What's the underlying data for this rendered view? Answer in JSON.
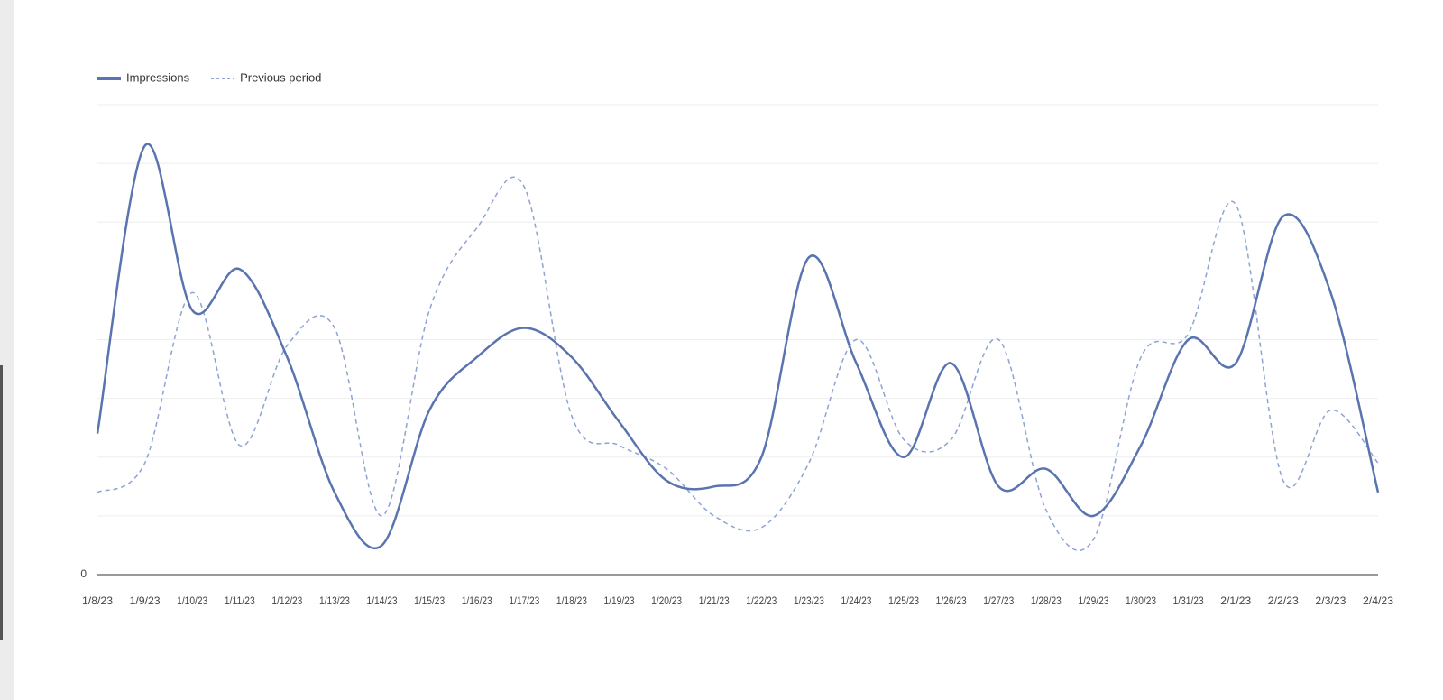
{
  "chart_data": {
    "type": "line",
    "legend": "top-left",
    "categories": [
      "1/8/23",
      "1/9/23",
      "1/10/23",
      "1/11/23",
      "1/12/23",
      "1/13/23",
      "1/14/23",
      "1/15/23",
      "1/16/23",
      "1/17/23",
      "1/18/23",
      "1/19/23",
      "1/20/23",
      "1/21/23",
      "1/22/23",
      "1/23/23",
      "1/24/23",
      "1/25/23",
      "1/26/23",
      "1/27/23",
      "1/28/23",
      "1/29/23",
      "1/30/23",
      "1/31/23",
      "2/1/23",
      "2/2/23",
      "2/3/23",
      "2/4/23"
    ],
    "series": [
      {
        "name": "Impressions",
        "color": "#5a74b0",
        "style": "solid",
        "values": [
          2.4,
          7.3,
          4.5,
          5.2,
          3.7,
          1.4,
          0.5,
          2.8,
          3.7,
          4.2,
          3.7,
          2.6,
          1.6,
          1.5,
          2.0,
          5.4,
          3.6,
          2.0,
          3.6,
          1.5,
          1.8,
          1.0,
          2.2,
          4.0,
          3.6,
          6.1,
          4.8,
          1.4
        ]
      },
      {
        "name": "Previous period",
        "color": "#8ea3d2",
        "style": "dashed",
        "values": [
          1.4,
          1.9,
          4.8,
          2.2,
          3.9,
          4.2,
          1.0,
          4.5,
          5.9,
          6.6,
          2.7,
          2.2,
          1.8,
          1.0,
          0.8,
          1.9,
          4.0,
          2.3,
          2.3,
          4.0,
          1.1,
          0.6,
          3.7,
          4.1,
          6.3,
          1.6,
          2.8,
          1.9
        ]
      }
    ],
    "ylim": [
      0,
      8
    ],
    "yticks": [
      0,
      {
        "value": 1,
        "label": null
      },
      {
        "value": 2,
        "label": null
      },
      {
        "value": 3,
        "label": null
      },
      {
        "value": 4,
        "label": null
      },
      {
        "value": 5,
        "label": null
      },
      {
        "value": 6,
        "label": null
      },
      {
        "value": 7,
        "label": null
      },
      {
        "value": 8,
        "label": null
      }
    ],
    "grid": true
  }
}
